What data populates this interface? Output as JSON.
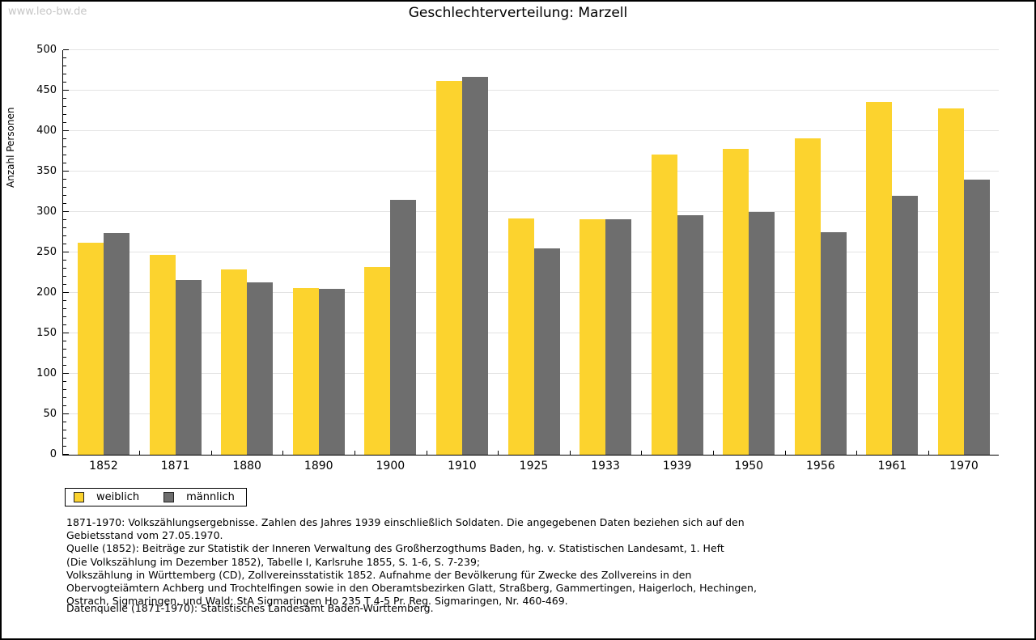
{
  "watermark": "www.leo-bw.de",
  "chart_data": {
    "type": "bar",
    "title": "Geschlechterverteilung: Marzell",
    "ylabel": "Anzahl Personen",
    "xlabel": "",
    "categories": [
      "1852",
      "1871",
      "1880",
      "1890",
      "1900",
      "1910",
      "1925",
      "1933",
      "1939",
      "1950",
      "1956",
      "1961",
      "1970"
    ],
    "series": [
      {
        "name": "weiblich",
        "color": "#FCD32E",
        "values": [
          262,
          247,
          229,
          206,
          232,
          462,
          292,
          291,
          371,
          378,
          391,
          436,
          428
        ]
      },
      {
        "name": "männlich",
        "color": "#6E6E6E",
        "values": [
          274,
          216,
          213,
          205,
          315,
          467,
          255,
          291,
          296,
          300,
          275,
          320,
          340
        ]
      }
    ],
    "ylim": [
      0,
      500
    ],
    "ytick_major": 50,
    "ytick_minor": 10,
    "grid": "horizontal-major",
    "legend_position": "below-left"
  },
  "footnote": {
    "lines": [
      "1871-1970: Volkszählungsergebnisse. Zahlen des Jahres 1939 einschließlich Soldaten. Die angegebenen Daten beziehen sich auf den",
      "Gebietsstand vom 27.05.1970.",
      "Quelle (1852): Beiträge zur Statistik der Inneren Verwaltung des Großherzogthums Baden, hg. v. Statistischen Landesamt, 1. Heft",
      "(Die Volkszählung im Dezember 1852), Tabelle I, Karlsruhe 1855, S. 1-6, S. 7-239;",
      "Volkszählung in Württemberg (CD), Zollvereinsstatistik 1852. Aufnahme der Bevölkerung für Zwecke des Zollvereins in den",
      "Obervogteiämtern Achberg und Trochtelfingen sowie in den Oberamtsbezirken Glatt, Straßberg, Gammertingen, Haigerloch, Hechingen,",
      "Ostrach, Sigmaringen, und Wald; StA Sigmaringen Ho 235 T 4-5 Pr. Reg. Sigmaringen, Nr. 460-469."
    ],
    "datasource": "Datenquelle (1871-1970): Statistisches Landesamt Baden-Württemberg."
  }
}
